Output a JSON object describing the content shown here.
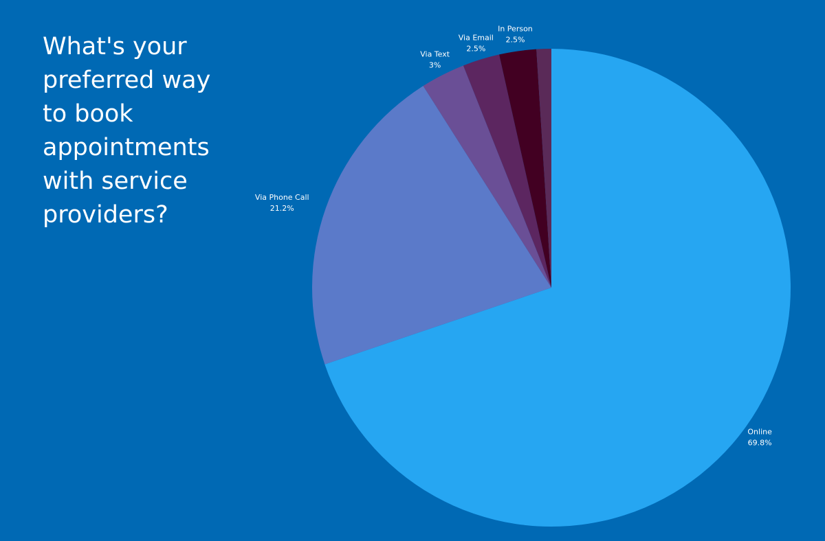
{
  "chart_data": {
    "type": "pie",
    "title": "What's your preferred way to book appointments with service providers?",
    "categories": [
      "Online",
      "Via Phone Call",
      "Via Text",
      "Via Email",
      "In Person",
      null
    ],
    "values": [
      69.8,
      21.2,
      3,
      2.5,
      2.5,
      1
    ],
    "value_labels": [
      "69.8%",
      "21.2%",
      "3%",
      "2.5%",
      "2.5%",
      null
    ],
    "colors": [
      "#26a6f2",
      "#5b7ac9",
      "#6a4f96",
      "#5c2660",
      "#420022",
      "#5a2a58"
    ]
  }
}
